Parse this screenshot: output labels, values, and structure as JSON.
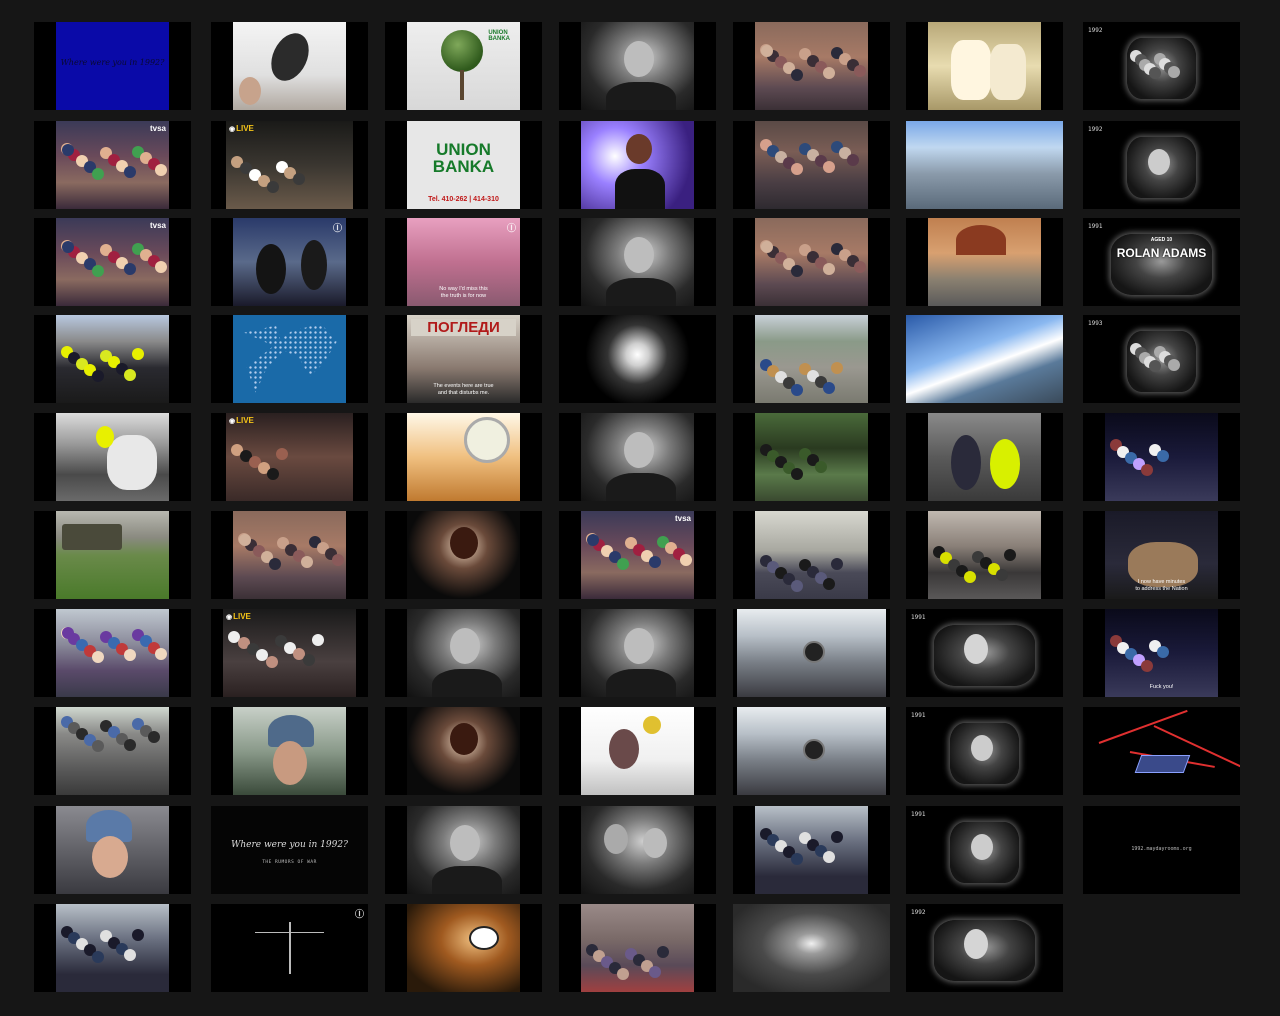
{
  "title_card": {
    "question": "Where were you in 1992?",
    "subtitle": "THE RUMORS OF WAR"
  },
  "channel_badges": {
    "live": "LIVE",
    "tvsa": "tvsa",
    "i1": "Ⓘ",
    "ua": "ⓤ"
  },
  "union_banka": {
    "small_logo": "UNION\nBANKA",
    "title": "UNION\nBANKA",
    "phone": "Tel. 410-262 | 414-310"
  },
  "poster": {
    "headline": "ПОГЛЕДИ"
  },
  "dosa": {
    "caption": "No way I'd miss this\nthe truth is for now"
  },
  "subtitles": {
    "events_true": "The events here are true\nand that disturbs me.",
    "announce": "I now have minutes\nto address the Nation",
    "fuck": "Fuck you!"
  },
  "rolan": {
    "aged": "AGED 10",
    "name": "ROLAN ADAMS"
  },
  "years": {
    "y1992": "1992",
    "y1991": "1991",
    "y1993": "1993"
  },
  "footer_url": "1992.maydayrooms.org",
  "thumbnails": [
    {
      "col": 0,
      "row": 0,
      "scene": "title-blue"
    },
    {
      "col": 1,
      "row": 0,
      "scene": "hands-sky"
    },
    {
      "col": 2,
      "row": 0,
      "scene": "tree-union"
    },
    {
      "col": 3,
      "row": 0,
      "scene": "woman-bw"
    },
    {
      "col": 4,
      "row": 0,
      "scene": "crowd-street"
    },
    {
      "col": 5,
      "row": 0,
      "scene": "police-sepia"
    },
    {
      "col": 6,
      "row": 0,
      "scene": "tv-crowd"
    },
    {
      "col": 0,
      "row": 1,
      "scene": "crowd-tvsa"
    },
    {
      "col": 1,
      "row": 1,
      "scene": "live-street"
    },
    {
      "col": 2,
      "row": 1,
      "scene": "union-card"
    },
    {
      "col": 3,
      "row": 1,
      "scene": "singer-purple"
    },
    {
      "col": 4,
      "row": 1,
      "scene": "crowd-protest"
    },
    {
      "col": 5,
      "row": 1,
      "scene": "building-tree"
    },
    {
      "col": 6,
      "row": 1,
      "scene": "tv-face"
    },
    {
      "col": 0,
      "row": 2,
      "scene": "crowd-tvsa"
    },
    {
      "col": 1,
      "row": 2,
      "scene": "priest-blue"
    },
    {
      "col": 2,
      "row": 2,
      "scene": "dosa-pink"
    },
    {
      "col": 3,
      "row": 2,
      "scene": "woman-bw"
    },
    {
      "col": 4,
      "row": 2,
      "scene": "crowd-street"
    },
    {
      "col": 5,
      "row": 2,
      "scene": "station-arch"
    },
    {
      "col": 6,
      "row": 2,
      "scene": "tv-rolan"
    },
    {
      "col": 0,
      "row": 3,
      "scene": "police-yellow"
    },
    {
      "col": 1,
      "row": 3,
      "scene": "world-map"
    },
    {
      "col": 2,
      "row": 3,
      "scene": "poster-red"
    },
    {
      "col": 3,
      "row": 3,
      "scene": "spotlight"
    },
    {
      "col": 4,
      "row": 3,
      "scene": "march-road"
    },
    {
      "col": 5,
      "row": 3,
      "scene": "building-sky"
    },
    {
      "col": 6,
      "row": 3,
      "scene": "tv-crowd"
    },
    {
      "col": 0,
      "row": 4,
      "scene": "mounted-police"
    },
    {
      "col": 1,
      "row": 4,
      "scene": "live-interior"
    },
    {
      "col": 2,
      "row": 4,
      "scene": "singer-dish"
    },
    {
      "col": 3,
      "row": 4,
      "scene": "woman-bw"
    },
    {
      "col": 4,
      "row": 4,
      "scene": "park-crowd"
    },
    {
      "col": 5,
      "row": 4,
      "scene": "police-arrest"
    },
    {
      "col": 6,
      "row": 4,
      "scene": "stage-band"
    },
    {
      "col": 0,
      "row": 5,
      "scene": "trucks-field"
    },
    {
      "col": 1,
      "row": 5,
      "scene": "crowd-street"
    },
    {
      "col": 2,
      "row": 5,
      "scene": "singer-dark"
    },
    {
      "col": 3,
      "row": 5,
      "scene": "crowd-tvsa"
    },
    {
      "col": 4,
      "row": 5,
      "scene": "queue-building"
    },
    {
      "col": 5,
      "row": 5,
      "scene": "riot-street"
    },
    {
      "col": 6,
      "row": 5,
      "scene": "speaker-mic"
    },
    {
      "col": 0,
      "row": 6,
      "scene": "hands-raised"
    },
    {
      "col": 1,
      "row": 6,
      "scene": "live-crowd"
    },
    {
      "col": 2,
      "row": 6,
      "scene": "woman-bw"
    },
    {
      "col": 3,
      "row": 6,
      "scene": "woman-bw"
    },
    {
      "col": 4,
      "row": 6,
      "scene": "station-clock"
    },
    {
      "col": 5,
      "row": 6,
      "scene": "tv-wide"
    },
    {
      "col": 6,
      "row": 6,
      "scene": "stage-band"
    },
    {
      "col": 0,
      "row": 7,
      "scene": "riot-line"
    },
    {
      "col": 1,
      "row": 7,
      "scene": "helmet-profile"
    },
    {
      "col": 2,
      "row": 7,
      "scene": "singer-dark"
    },
    {
      "col": 3,
      "row": 7,
      "scene": "flowers-white"
    },
    {
      "col": 4,
      "row": 7,
      "scene": "station-clock"
    },
    {
      "col": 5,
      "row": 7,
      "scene": "tv-face"
    },
    {
      "col": 6,
      "row": 7,
      "scene": "studio-stage"
    },
    {
      "col": 0,
      "row": 8,
      "scene": "blue-helmet"
    },
    {
      "col": 1,
      "row": 8,
      "scene": "title-dark"
    },
    {
      "col": 2,
      "row": 8,
      "scene": "woman-bw"
    },
    {
      "col": 3,
      "row": 8,
      "scene": "couple-bw"
    },
    {
      "col": 4,
      "row": 8,
      "scene": "riot-police"
    },
    {
      "col": 5,
      "row": 8,
      "scene": "tv-face"
    },
    {
      "col": 6,
      "row": 8,
      "scene": "url-card"
    },
    {
      "col": 0,
      "row": 9,
      "scene": "riot-police"
    },
    {
      "col": 1,
      "row": 9,
      "scene": "scales"
    },
    {
      "col": 2,
      "row": 9,
      "scene": "headphones"
    },
    {
      "col": 3,
      "row": 9,
      "scene": "street-tram"
    },
    {
      "col": 4,
      "row": 9,
      "scene": "tunnel"
    },
    {
      "col": 5,
      "row": 9,
      "scene": "tv-wide"
    }
  ]
}
